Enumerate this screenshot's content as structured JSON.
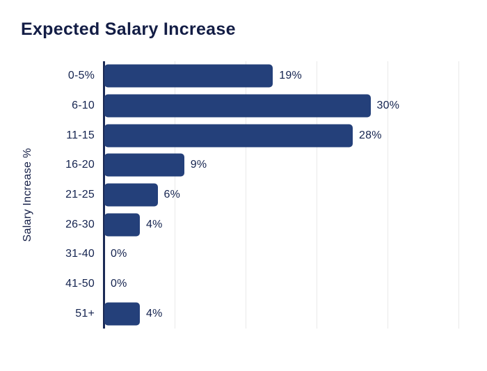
{
  "title": "Expected Salary Increase",
  "chart_data": {
    "type": "bar",
    "orientation": "horizontal",
    "title": "Expected Salary Increase",
    "xlabel": "",
    "ylabel": "Salary Increase %",
    "categories": [
      "0-5%",
      "6-10",
      "11-15",
      "16-20",
      "21-25",
      "26-30",
      "31-40",
      "41-50",
      "51+"
    ],
    "values": [
      19,
      30,
      28,
      9,
      6,
      4,
      0,
      0,
      4
    ],
    "value_labels": [
      "19%",
      "30%",
      "28%",
      "9%",
      "6%",
      "4%",
      "0%",
      "0%",
      "4%"
    ],
    "xlim": [
      0,
      40
    ],
    "grid": true,
    "gridline_count": 5,
    "legend": false,
    "bar_color": "#24407a",
    "text_color": "#14234f",
    "axis_color": "#1b2a55",
    "gridline_color": "#e9e9e9"
  }
}
